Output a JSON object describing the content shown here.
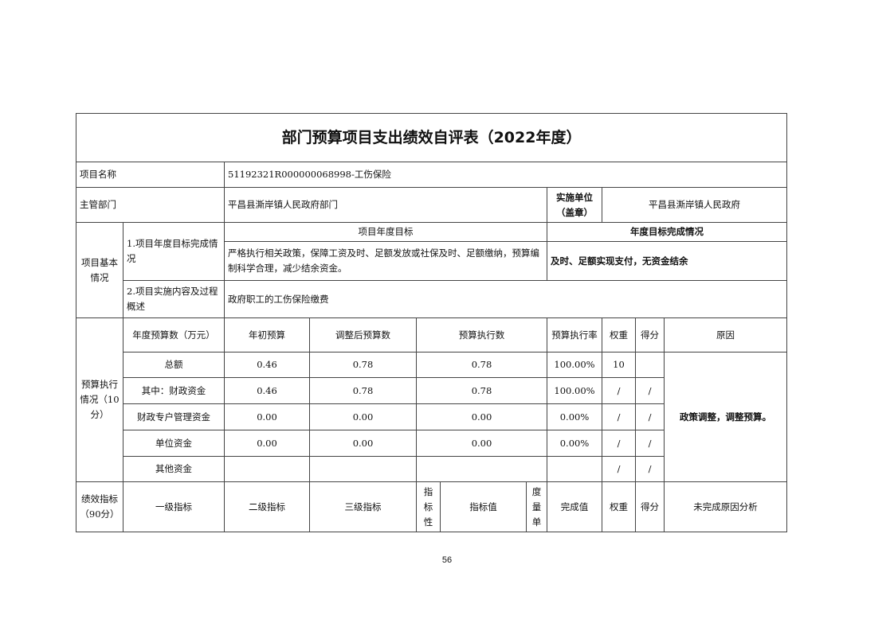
{
  "title": "部门预算项目支出绩效自评表（2022年度）",
  "project_name_label": "项目名称",
  "project_name": "51192321R000000068998-工伤保险",
  "dept_label": "主管部门",
  "dept": "平昌县澌岸镇人民政府部门",
  "impl_label": "实施单位（盖章）",
  "impl": "平昌县澌岸镇人民政府",
  "basic": {
    "label": "项目基本情况",
    "goal_label": "1.项目年度目标完成情况",
    "goal_header": "项目年度目标",
    "done_header": "年度目标完成情况",
    "goal_text": "严格执行相关政策，保障工资及时、足额发放或社保及时、足额缴纳，预算编制科学合理，减少结余资金。",
    "done_text": "及时、足额实现支付，无资金结余",
    "content_label": "2.项目实施内容及过程概述",
    "content_text": "政府职工的工伤保险缴费"
  },
  "budget": {
    "label": "预算执行情况（10分）",
    "headers": [
      "年度预算数（万元）",
      "年初预算",
      "调整后预算数",
      "预算执行数",
      "预算执行率",
      "权重",
      "得分",
      "原因"
    ],
    "rows": [
      [
        "总额",
        "0.46",
        "0.78",
        "0.78",
        "100.00%",
        "10",
        ""
      ],
      [
        "其中：财政资金",
        "0.46",
        "0.78",
        "0.78",
        "100.00%",
        "/",
        "/"
      ],
      [
        "财政专户管理资金",
        "0.00",
        "0.00",
        "0.00",
        "0.00%",
        "/",
        "/"
      ],
      [
        "单位资金",
        "0.00",
        "0.00",
        "0.00",
        "0.00%",
        "/",
        "/"
      ],
      [
        "其他资金",
        "",
        "",
        "",
        "",
        "/",
        "/"
      ]
    ],
    "reason": "政策调整，调整预算。"
  },
  "perf": {
    "label": "绩效指标（90分）",
    "headers": [
      "一级指标",
      "二级指标",
      "三级指标",
      "指标性",
      "指标值",
      "度量单",
      "完成值",
      "权重",
      "得分",
      "未完成原因分析"
    ]
  },
  "page_number": "56"
}
